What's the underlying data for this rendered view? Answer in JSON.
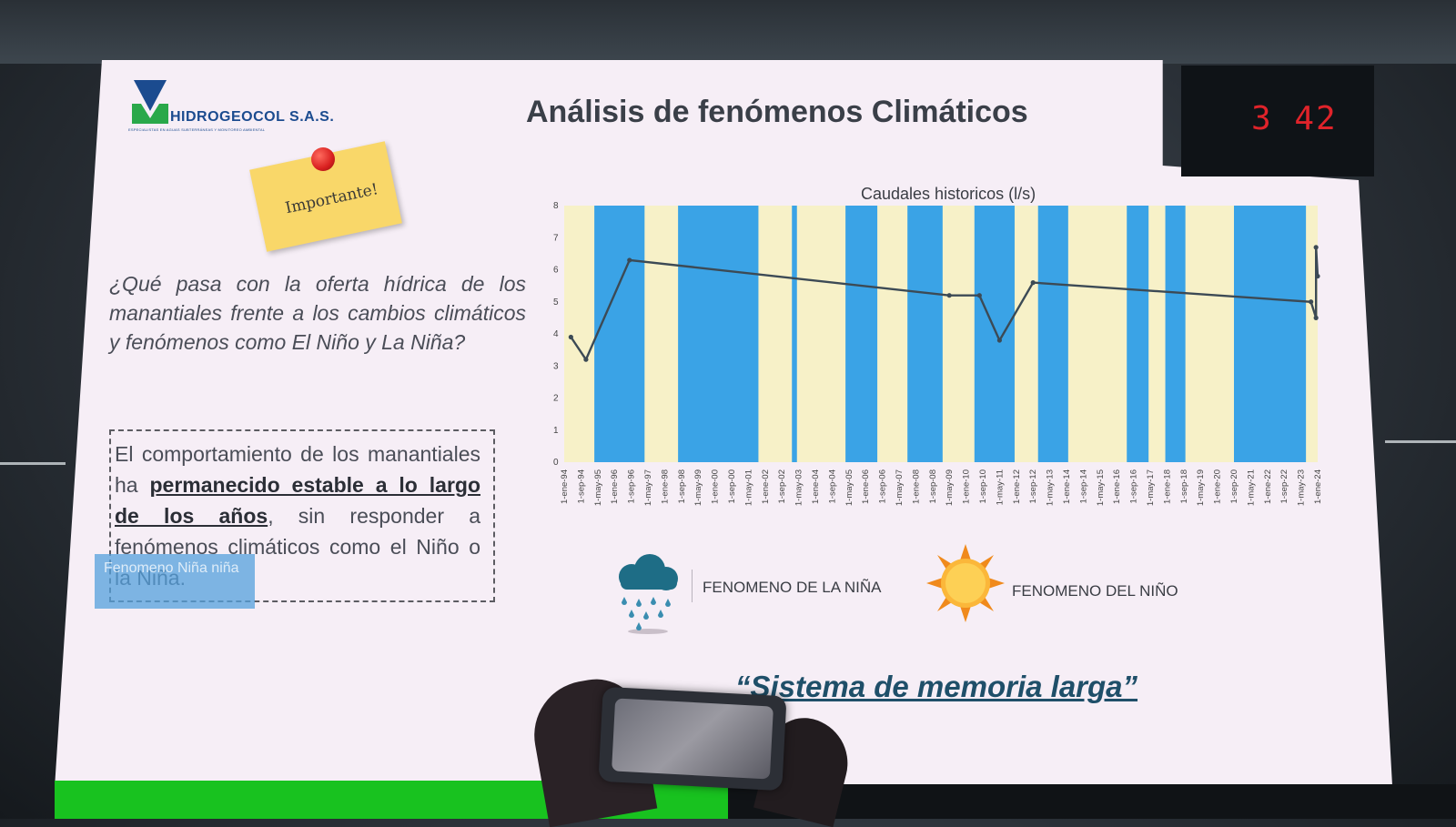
{
  "logo": {
    "name": "HIDROGEOCOL S.A.S.",
    "tagline": "ESPECIALISTAS EN AGUAS SUBTERRÁNEAS Y MONITOREO AMBIENTAL"
  },
  "slide_title": "Análisis de fenómenos Climáticos",
  "timer": "3 42",
  "sticky_note": "Importante!",
  "question": "¿Qué pasa con la oferta hídrica de los manantiales frente a los cambios climáticos y fenómenos como El Niño y La Niña?",
  "behavior": {
    "part1": "El comportamiento de los manantiales ha ",
    "bold": "permanecido estable a lo largo de los años",
    "part2": ", sin responder a fenómenos climáticos como el Niño o la Niña."
  },
  "overlay_chip": "Fenomeno Niña niña",
  "legend": {
    "nina": "FENOMENO DE LA NIÑA",
    "nino": "FENOMENO DEL NIÑO"
  },
  "quote": "“Sistema de memoria larga”",
  "colors": {
    "nina_band": "#3aa3e6",
    "nino_band": "#f7f1c8",
    "line": "#3c4a55",
    "title": "#3a3f48",
    "quote": "#1f4f69"
  },
  "chart_data": {
    "type": "line",
    "title": "Caudales historicos (l/s)",
    "ylim": [
      0,
      8
    ],
    "y_ticks": [
      "0",
      "1",
      "2",
      "3",
      "4",
      "5",
      "6",
      "7",
      "8"
    ],
    "x_labels": [
      "1-ene-94",
      "1-sep-94",
      "1-may-95",
      "1-ene-96",
      "1-sep-96",
      "1-may-97",
      "1-ene-98",
      "1-sep-98",
      "1-may-99",
      "1-ene-00",
      "1-sep-00",
      "1-may-01",
      "1-ene-02",
      "1-sep-02",
      "1-may-03",
      "1-ene-04",
      "1-sep-04",
      "1-may-05",
      "1-ene-06",
      "1-sep-06",
      "1-may-07",
      "1-ene-08",
      "1-sep-08",
      "1-may-09",
      "1-ene-10",
      "1-sep-10",
      "1-may-11",
      "1-ene-12",
      "1-sep-12",
      "1-may-13",
      "1-ene-14",
      "1-sep-14",
      "1-may-15",
      "1-ene-16",
      "1-sep-16",
      "1-may-17",
      "1-ene-18",
      "1-sep-18",
      "1-may-19",
      "1-ene-20",
      "1-sep-20",
      "1-may-21",
      "1-ene-22",
      "1-sep-22",
      "1-may-23",
      "1-ene-24"
    ],
    "series": [
      {
        "points": [
          {
            "x": 0.4,
            "y": 3.9
          },
          {
            "x": 1.3,
            "y": 3.2
          },
          {
            "x": 3.9,
            "y": 6.3
          },
          {
            "x": 23.0,
            "y": 5.2
          },
          {
            "x": 24.8,
            "y": 5.2
          },
          {
            "x": 26.0,
            "y": 3.8
          },
          {
            "x": 28.0,
            "y": 5.6
          },
          {
            "x": 44.6,
            "y": 5.0
          },
          {
            "x": 44.9,
            "y": 4.5
          },
          {
            "x": 44.9,
            "y": 6.7
          },
          {
            "x": 45.0,
            "y": 5.8
          }
        ]
      }
    ],
    "nina_periods": [
      [
        1.8,
        4.8
      ],
      [
        6.8,
        11.6
      ],
      [
        13.6,
        13.9
      ],
      [
        16.8,
        18.7
      ],
      [
        20.5,
        22.6
      ],
      [
        24.5,
        26.9
      ],
      [
        28.3,
        30.1
      ],
      [
        33.6,
        34.9
      ],
      [
        35.9,
        37.1
      ],
      [
        40.0,
        44.3
      ]
    ],
    "grid": false,
    "legend_position": "bottom"
  }
}
